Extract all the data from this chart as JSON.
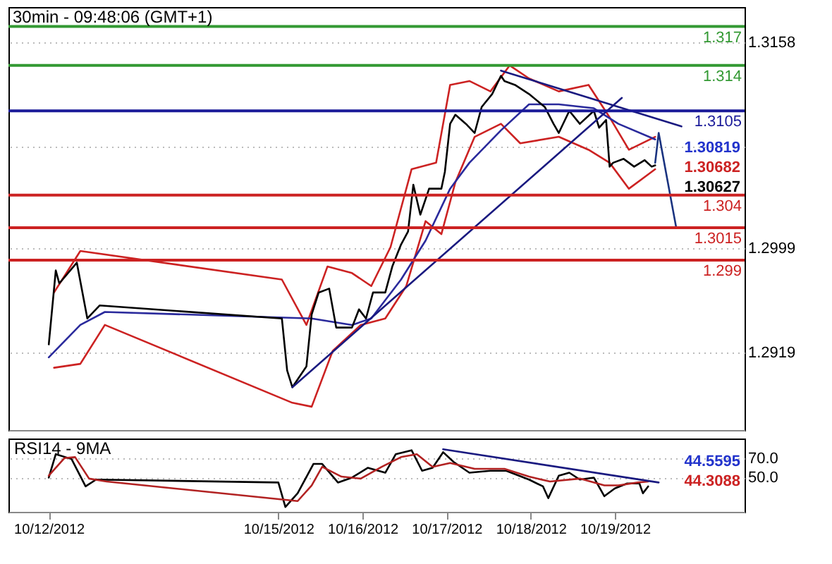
{
  "chart_data": [
    {
      "type": "line",
      "title": "30min - 09:48:06 (GMT+1)",
      "xlim": [
        "2012-10-11T19:00",
        "2012-10-20T13:00"
      ],
      "ylim": [
        1.2859,
        1.3185
      ],
      "yticks": [
        1.3158,
        {
          "value": 1.3077,
          "label": null
        },
        1.2999,
        1.2919
      ],
      "grid": "y",
      "marker": "none",
      "line_style": "solid",
      "tick_labels": "y",
      "series": [
        {
          "color": "#cc2222",
          "x": [
            "2012-10-12T08:00",
            "2012-10-12T15:30",
            "2012-10-15T01:00",
            "2012-10-15T08:00",
            "2012-10-15T14:00",
            "2012-10-15T21:00",
            "2012-10-16T02:30",
            "2012-10-16T08:00",
            "2012-10-16T14:00",
            "2012-10-16T21:00",
            "2012-10-17T01:00",
            "2012-10-17T06:30",
            "2012-10-17T12:30",
            "2012-10-17T18:00",
            "2012-10-17T23:30",
            "2012-10-18T08:00",
            "2012-10-18T16:30",
            "2012-10-18T22:30",
            "2012-10-19T04:00",
            "2012-10-19T11:30"
          ],
          "values": [
            1.2965,
            1.2997,
            1.2975,
            1.294,
            1.2985,
            1.298,
            1.297,
            1.3,
            1.306,
            1.3065,
            1.3125,
            1.3128,
            1.312,
            1.314,
            1.313,
            1.312,
            1.3125,
            1.31,
            1.3075,
            1.3085
          ]
        },
        {
          "color": "#cc2222",
          "x": [
            "2012-10-12T08:00",
            "2012-10-12T15:30",
            "2012-10-12T22:30",
            "2012-10-15T04:00",
            "2012-10-15T09:30",
            "2012-10-15T15:30",
            "2012-10-15T23:30",
            "2012-10-16T06:30",
            "2012-10-16T12:30",
            "2012-10-16T18:00",
            "2012-10-16T22:30",
            "2012-10-17T02:30",
            "2012-10-17T08:00",
            "2012-10-17T15:30",
            "2012-10-17T21:00",
            "2012-10-18T08:00",
            "2012-10-18T16:30",
            "2012-10-18T22:30",
            "2012-10-19T04:00",
            "2012-10-19T11:30"
          ],
          "values": [
            1.2907,
            1.291,
            1.294,
            1.288,
            1.2877,
            1.292,
            1.294,
            1.2945,
            1.297,
            1.302,
            1.301,
            1.305,
            1.3085,
            1.3095,
            1.308,
            1.3085,
            1.3075,
            1.3065,
            1.3045,
            1.306
          ]
        },
        {
          "color": "#2a2a9c",
          "x": [
            "2012-10-12T06:30",
            "2012-10-12T15:30",
            "2012-10-12T22:30",
            "2012-10-15T09:30",
            "2012-10-15T21:00",
            "2012-10-16T02:30",
            "2012-10-16T11:00",
            "2012-10-16T18:00",
            "2012-10-17T01:00",
            "2012-10-17T06:30",
            "2012-10-17T15:30",
            "2012-10-17T23:30",
            "2012-10-18T08:00",
            "2012-10-18T18:00",
            "2012-10-19T01:00",
            "2012-10-19T11:30"
          ],
          "values": [
            1.2915,
            1.294,
            1.295,
            1.2945,
            1.294,
            1.2945,
            1.2975,
            1.3005,
            1.3045,
            1.3065,
            1.309,
            1.311,
            1.311,
            1.3107,
            1.3095,
            1.3083
          ]
        },
        {
          "color": "#000000",
          "x": [
            "2012-10-12T06:30",
            "2012-10-12T08:30",
            "2012-10-12T09:30",
            "2012-10-12T14:30",
            "2012-10-12T17:30",
            "2012-10-12T21:00",
            "2012-10-15T01:00",
            "2012-10-15T02:30",
            "2012-10-15T04:00",
            "2012-10-15T08:00",
            "2012-10-15T09:30",
            "2012-10-15T11:30",
            "2012-10-15T14:30",
            "2012-10-15T16:30",
            "2012-10-15T21:00",
            "2012-10-15T23:00",
            "2012-10-16T01:00",
            "2012-10-16T03:00",
            "2012-10-16T06:30",
            "2012-10-16T08:30",
            "2012-10-16T11:00",
            "2012-10-16T13:00",
            "2012-10-16T14:30",
            "2012-10-16T16:30",
            "2012-10-16T19:00",
            "2012-10-16T22:30",
            "2012-10-16T23:30",
            "2012-10-17T01:00",
            "2012-10-17T02:30",
            "2012-10-17T05:30",
            "2012-10-17T08:00",
            "2012-10-17T10:00",
            "2012-10-17T13:00",
            "2012-10-17T15:30",
            "2012-10-17T16:30",
            "2012-10-17T19:30",
            "2012-10-17T23:30",
            "2012-10-18T04:00",
            "2012-10-18T06:30",
            "2012-10-18T08:00",
            "2012-10-18T11:00",
            "2012-10-18T14:00",
            "2012-10-18T18:00",
            "2012-10-18T19:30",
            "2012-10-18T21:30",
            "2012-10-18T22:30",
            "2012-10-18T23:30",
            "2012-10-19T02:30",
            "2012-10-19T05:30",
            "2012-10-19T08:30",
            "2012-10-19T10:30",
            "2012-10-19T11:30"
          ],
          "values": [
            1.2925,
            1.2982,
            1.2972,
            1.2988,
            1.2945,
            1.2955,
            1.2945,
            1.2905,
            1.2892,
            1.2908,
            1.2948,
            1.2965,
            1.2968,
            1.2938,
            1.2938,
            1.2952,
            1.2945,
            1.2965,
            1.2965,
            1.2985,
            1.3002,
            1.3012,
            1.3048,
            1.3025,
            1.3045,
            1.3045,
            1.3058,
            1.3095,
            1.3102,
            1.3095,
            1.3088,
            1.3108,
            1.3118,
            1.3132,
            1.3128,
            1.3125,
            1.3118,
            1.3108,
            1.3095,
            1.3088,
            1.3105,
            1.3095,
            1.3105,
            1.3092,
            1.3098,
            1.3062,
            1.3065,
            1.3068,
            1.3062,
            1.3067,
            1.3062,
            1.3063
          ]
        },
        {
          "color": "#1a1a80",
          "x": [
            "2012-10-15T04:00",
            "2012-10-19T02:00"
          ],
          "values": [
            1.2892,
            1.3115
          ]
        },
        {
          "color": "#1a1a80",
          "x": [
            "2012-10-17T15:30",
            "2012-10-19T19:00"
          ],
          "values": [
            1.3136,
            1.3093
          ]
        },
        {
          "color": "#1a3380",
          "x": [
            "2012-10-19T11:30",
            "2012-10-19T12:30",
            "2012-10-19T17:30"
          ],
          "values": [
            1.3065,
            1.3088,
            1.3015
          ]
        }
      ],
      "ref_lines": [
        {
          "axis": "y",
          "value": 1.317,
          "label": "1.317",
          "color": "#339933"
        },
        {
          "axis": "y",
          "value": 1.314,
          "label": "1.314",
          "color": "#339933"
        },
        {
          "axis": "y",
          "value": 1.3105,
          "label": "1.3105",
          "color": "#1a1a99"
        },
        {
          "axis": "y",
          "value": 1.304,
          "label": "1.304",
          "color": "#cc2222"
        },
        {
          "axis": "y",
          "value": 1.3015,
          "label": "1.3015",
          "color": "#cc2222"
        },
        {
          "axis": "y",
          "value": 1.299,
          "label": "1.299",
          "color": "#cc2222"
        }
      ],
      "annotations": [
        "1.30819",
        "1.30682",
        "1.30627"
      ]
    },
    {
      "type": "line",
      "title": "RSI14 - 9MA",
      "xlim": [
        "2012-10-11T19:00",
        "2012-10-20T13:00"
      ],
      "ylim": [
        15,
        90
      ],
      "yticks": [
        {
          "value": 70,
          "label": "70.0"
        },
        {
          "value": 50,
          "label": "50.0"
        }
      ],
      "xticks": [
        {
          "value": "2012-10-12T06:30",
          "label": "10/12/2012"
        },
        {
          "value": "2012-10-15",
          "label": "10/15/2012"
        },
        {
          "value": "2012-10-16",
          "label": "10/16/2012"
        },
        {
          "value": "2012-10-17",
          "label": "10/17/2012"
        },
        {
          "value": "2012-10-18",
          "label": "10/18/2012"
        },
        {
          "value": "2012-10-19",
          "label": "10/19/2012"
        }
      ],
      "grid": "y",
      "marker": "none",
      "line_style": "solid",
      "series": [
        {
          "color": "#000000",
          "x": [
            "2012-10-12T06:30",
            "2012-10-12T08:30",
            "2012-10-12T13:00",
            "2012-10-12T17:00",
            "2012-10-12T20:00",
            "2012-10-15T00:00",
            "2012-10-15T02:00",
            "2012-10-15T05:30",
            "2012-10-15T10:00",
            "2012-10-15T12:30",
            "2012-10-15T17:00",
            "2012-10-15T21:00",
            "2012-10-16T01:30",
            "2012-10-16T06:30",
            "2012-10-16T09:30",
            "2012-10-16T14:00",
            "2012-10-16T17:00",
            "2012-10-16T20:00",
            "2012-10-16T23:00",
            "2012-10-17T02:00",
            "2012-10-17T06:30",
            "2012-10-17T12:30",
            "2012-10-17T17:00",
            "2012-10-17T23:30",
            "2012-10-18T03:30",
            "2012-10-18T05:00",
            "2012-10-18T08:00",
            "2012-10-18T11:00",
            "2012-10-18T14:00",
            "2012-10-18T18:00",
            "2012-10-18T21:00",
            "2012-10-19T00:00",
            "2012-10-19T03:30",
            "2012-10-19T07:00",
            "2012-10-19T08:00",
            "2012-10-19T09:30"
          ],
          "values": [
            50,
            74,
            69,
            41,
            48,
            45,
            20,
            34,
            64,
            64,
            45,
            50,
            60,
            55,
            74,
            78,
            57,
            60,
            76,
            66,
            55,
            57,
            57,
            48,
            41,
            29,
            52,
            55,
            48,
            50,
            31,
            39,
            44,
            44,
            34,
            41
          ]
        },
        {
          "color": "#b22222",
          "x": [
            "2012-10-12T06:30",
            "2012-10-12T11:00",
            "2012-10-12T14:00",
            "2012-10-12T18:00",
            "2012-10-12T23:00",
            "2012-10-15T05:30",
            "2012-10-15T09:30",
            "2012-10-15T12:30",
            "2012-10-15T18:00",
            "2012-10-15T23:30",
            "2012-10-16T05:30",
            "2012-10-16T11:00",
            "2012-10-16T15:30",
            "2012-10-16T20:00",
            "2012-10-17T01:00",
            "2012-10-17T08:00",
            "2012-10-17T16:30",
            "2012-10-17T23:30",
            "2012-10-18T05:30",
            "2012-10-18T14:00",
            "2012-10-18T21:00",
            "2012-10-19T01:00",
            "2012-10-19T06:30",
            "2012-10-19T09:30"
          ],
          "values": [
            52,
            70,
            71,
            49,
            46,
            26,
            42,
            61,
            51,
            49,
            61,
            71,
            74,
            61,
            65,
            59,
            59,
            51,
            46,
            49,
            42,
            42,
            45,
            46
          ]
        },
        {
          "color": "#1a1a80",
          "x": [
            "2012-10-16T23:00",
            "2012-10-19T12:30"
          ],
          "values": [
            79,
            45
          ]
        }
      ],
      "annotations": [
        "44.5595",
        "44.3088"
      ]
    }
  ]
}
